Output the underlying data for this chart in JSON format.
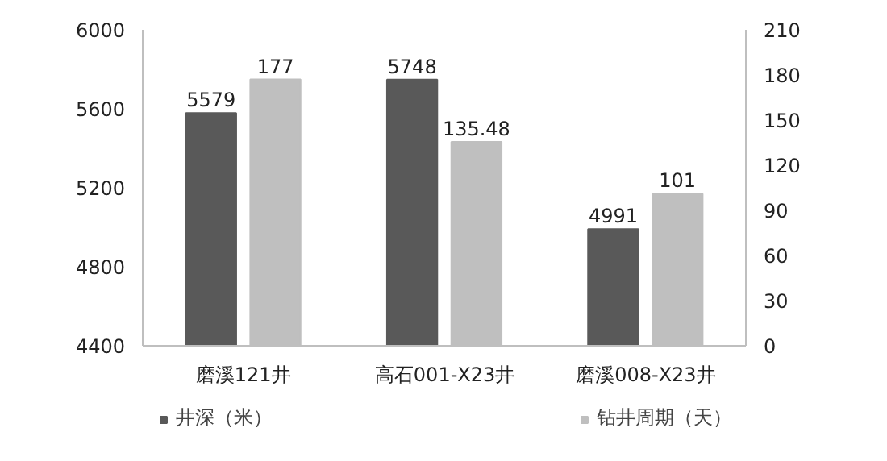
{
  "chart_data": {
    "type": "bar",
    "categories": [
      "磨溪121井",
      "高石001-X23井",
      "磨溪008-X23井"
    ],
    "series": [
      {
        "name": "井深（米）",
        "color": "#595959",
        "values": [
          5579,
          5748,
          4991
        ]
      },
      {
        "name": "钻井周期（天）",
        "color": "#bfbfbf",
        "values": [
          177,
          135.48,
          101
        ],
        "axis": "y2"
      }
    ],
    "ylim": [
      4400,
      6000
    ],
    "yticks": [
      4400,
      4800,
      5200,
      5600,
      6000
    ],
    "y2lim": [
      0,
      210
    ],
    "y2ticks": [
      0,
      30,
      60,
      90,
      120,
      150,
      180,
      210
    ],
    "data_labels": true,
    "grid": false,
    "legend": "bottom"
  }
}
